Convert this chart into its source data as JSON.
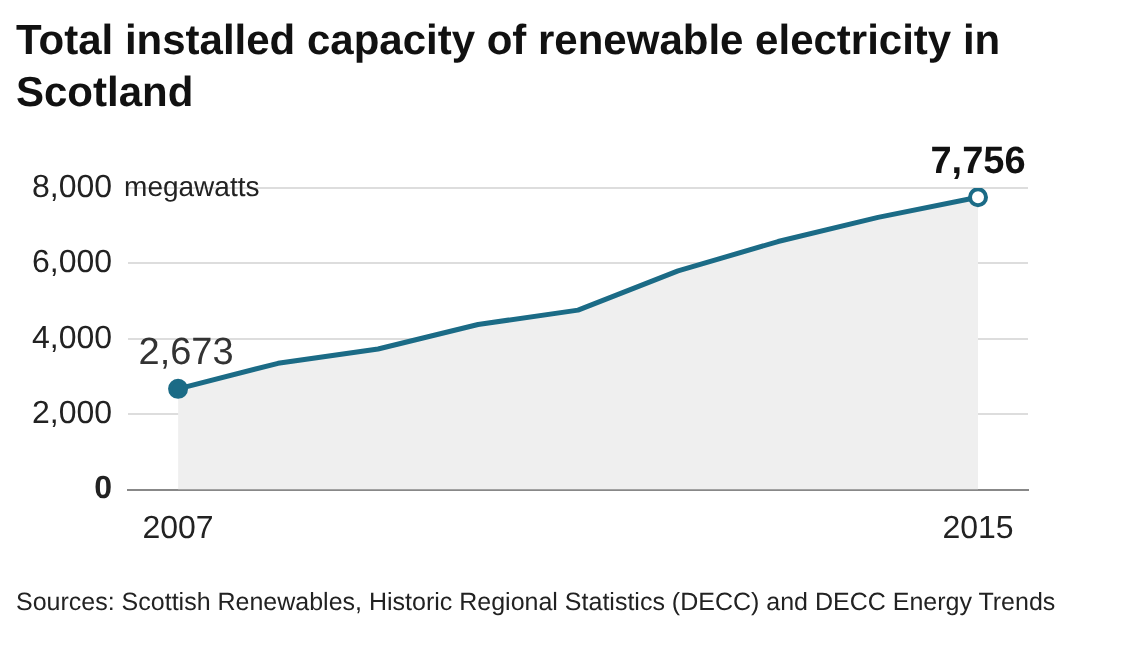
{
  "chart_data": {
    "type": "area",
    "title": "Total installed capacity of renewable electricity in Scotland",
    "ylabel": "megawatts",
    "categories": [
      "2007",
      null,
      null,
      null,
      null,
      null,
      null,
      null,
      "2015"
    ],
    "series": [
      {
        "color": "#1b6b86",
        "values": [
          2673,
          3350,
          3730,
          4380,
          4760,
          5800,
          6580,
          7220,
          7756
        ],
        "value_labels": [
          "2,673",
          null,
          null,
          null,
          null,
          null,
          null,
          null,
          "7,756"
        ]
      }
    ],
    "ylim": [
      0,
      8000
    ],
    "yticks": [
      {
        "value": 0,
        "label": "0"
      },
      {
        "value": 2000,
        "label": "2,000"
      },
      {
        "value": 4000,
        "label": "4,000"
      },
      {
        "value": 6000,
        "label": "6,000"
      },
      {
        "value": 8000,
        "label": "8,000"
      }
    ],
    "grid": "y",
    "legend": false,
    "annotations": [
      "Sources: Scottish Renewables, Historic Regional Statistics (DECC) and DECC Energy Trends"
    ]
  }
}
